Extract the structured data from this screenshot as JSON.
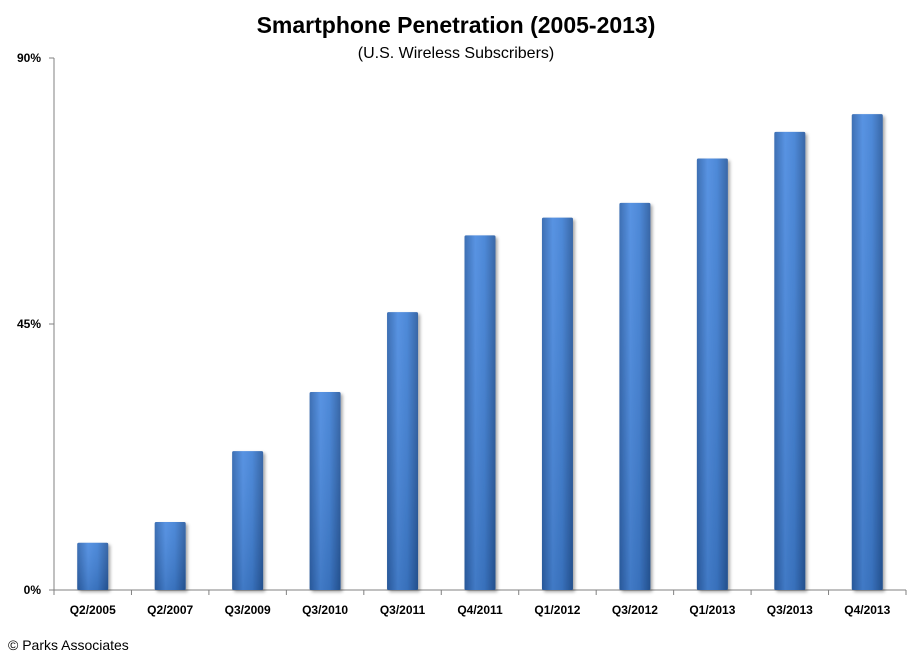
{
  "copyright": "© Parks Associates",
  "chart_data": {
    "type": "bar",
    "title": "Smartphone Penetration (2005-2013)",
    "subtitle": "(U.S. Wireless Subscribers)",
    "categories": [
      "Q2/2005",
      "Q2/2007",
      "Q3/2009",
      "Q3/2010",
      "Q3/2011",
      "Q4/2011",
      "Q1/2012",
      "Q3/2012",
      "Q1/2013",
      "Q3/2013",
      "Q4/2013"
    ],
    "values": [
      8,
      11.5,
      23.5,
      33.5,
      47,
      60,
      63,
      65.5,
      73,
      77.5,
      80.5
    ],
    "ylim": [
      0,
      90
    ],
    "yticks": [
      0,
      45,
      90
    ],
    "ytick_labels": [
      "0%",
      "45%",
      "90%"
    ],
    "bar_color": "#3f7fd4",
    "grid": false,
    "legend": "none"
  }
}
